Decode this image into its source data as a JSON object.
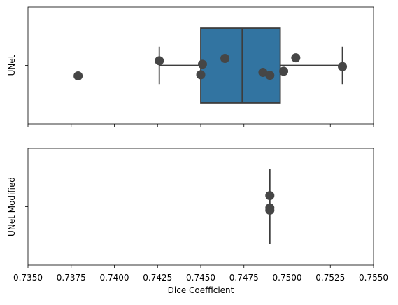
{
  "chart_data": {
    "type": "boxplot",
    "shared_x_axis": {
      "label": "Dice Coefficient",
      "range": [
        0.735,
        0.755
      ],
      "ticks": [
        0.735,
        0.7375,
        0.74,
        0.7425,
        0.745,
        0.7475,
        0.75,
        0.7525,
        0.755
      ],
      "tick_labels": [
        "0.7350",
        "0.7375",
        "0.7400",
        "0.7425",
        "0.7450",
        "0.7475",
        "0.7500",
        "0.7525",
        "0.7550"
      ]
    },
    "panels": [
      {
        "ylabel": "UNet",
        "box": {
          "q1": 0.745,
          "median": 0.7474,
          "q3": 0.7496,
          "whisker_low": 0.7426,
          "whisker_high": 0.7532,
          "fill": "#3274a1"
        },
        "points": [
          {
            "x": 0.7379,
            "jitter": -0.18
          },
          {
            "x": 0.7426,
            "jitter": 0.08
          },
          {
            "x": 0.7451,
            "jitter": 0.02
          },
          {
            "x": 0.745,
            "jitter": -0.16
          },
          {
            "x": 0.7464,
            "jitter": 0.12
          },
          {
            "x": 0.7486,
            "jitter": -0.12
          },
          {
            "x": 0.749,
            "jitter": -0.17
          },
          {
            "x": 0.7498,
            "jitter": -0.1
          },
          {
            "x": 0.7505,
            "jitter": 0.13
          },
          {
            "x": 0.7532,
            "jitter": -0.02
          }
        ]
      },
      {
        "ylabel": "UNet Modified",
        "box": {
          "q1": 0.749,
          "median": 0.749,
          "q3": 0.749,
          "whisker_low": 0.749,
          "whisker_high": 0.749,
          "fill": "#3274a1"
        },
        "range_line": [
          0.749,
          0.749
        ],
        "points": [
          {
            "x": 0.749,
            "jitter": 0.19
          },
          {
            "x": 0.749,
            "jitter": -0.02
          },
          {
            "x": 0.749,
            "jitter": -0.06
          }
        ]
      }
    ],
    "colors": {
      "point": "#464646",
      "line": "#3d3d3d",
      "axis": "#000000"
    }
  }
}
